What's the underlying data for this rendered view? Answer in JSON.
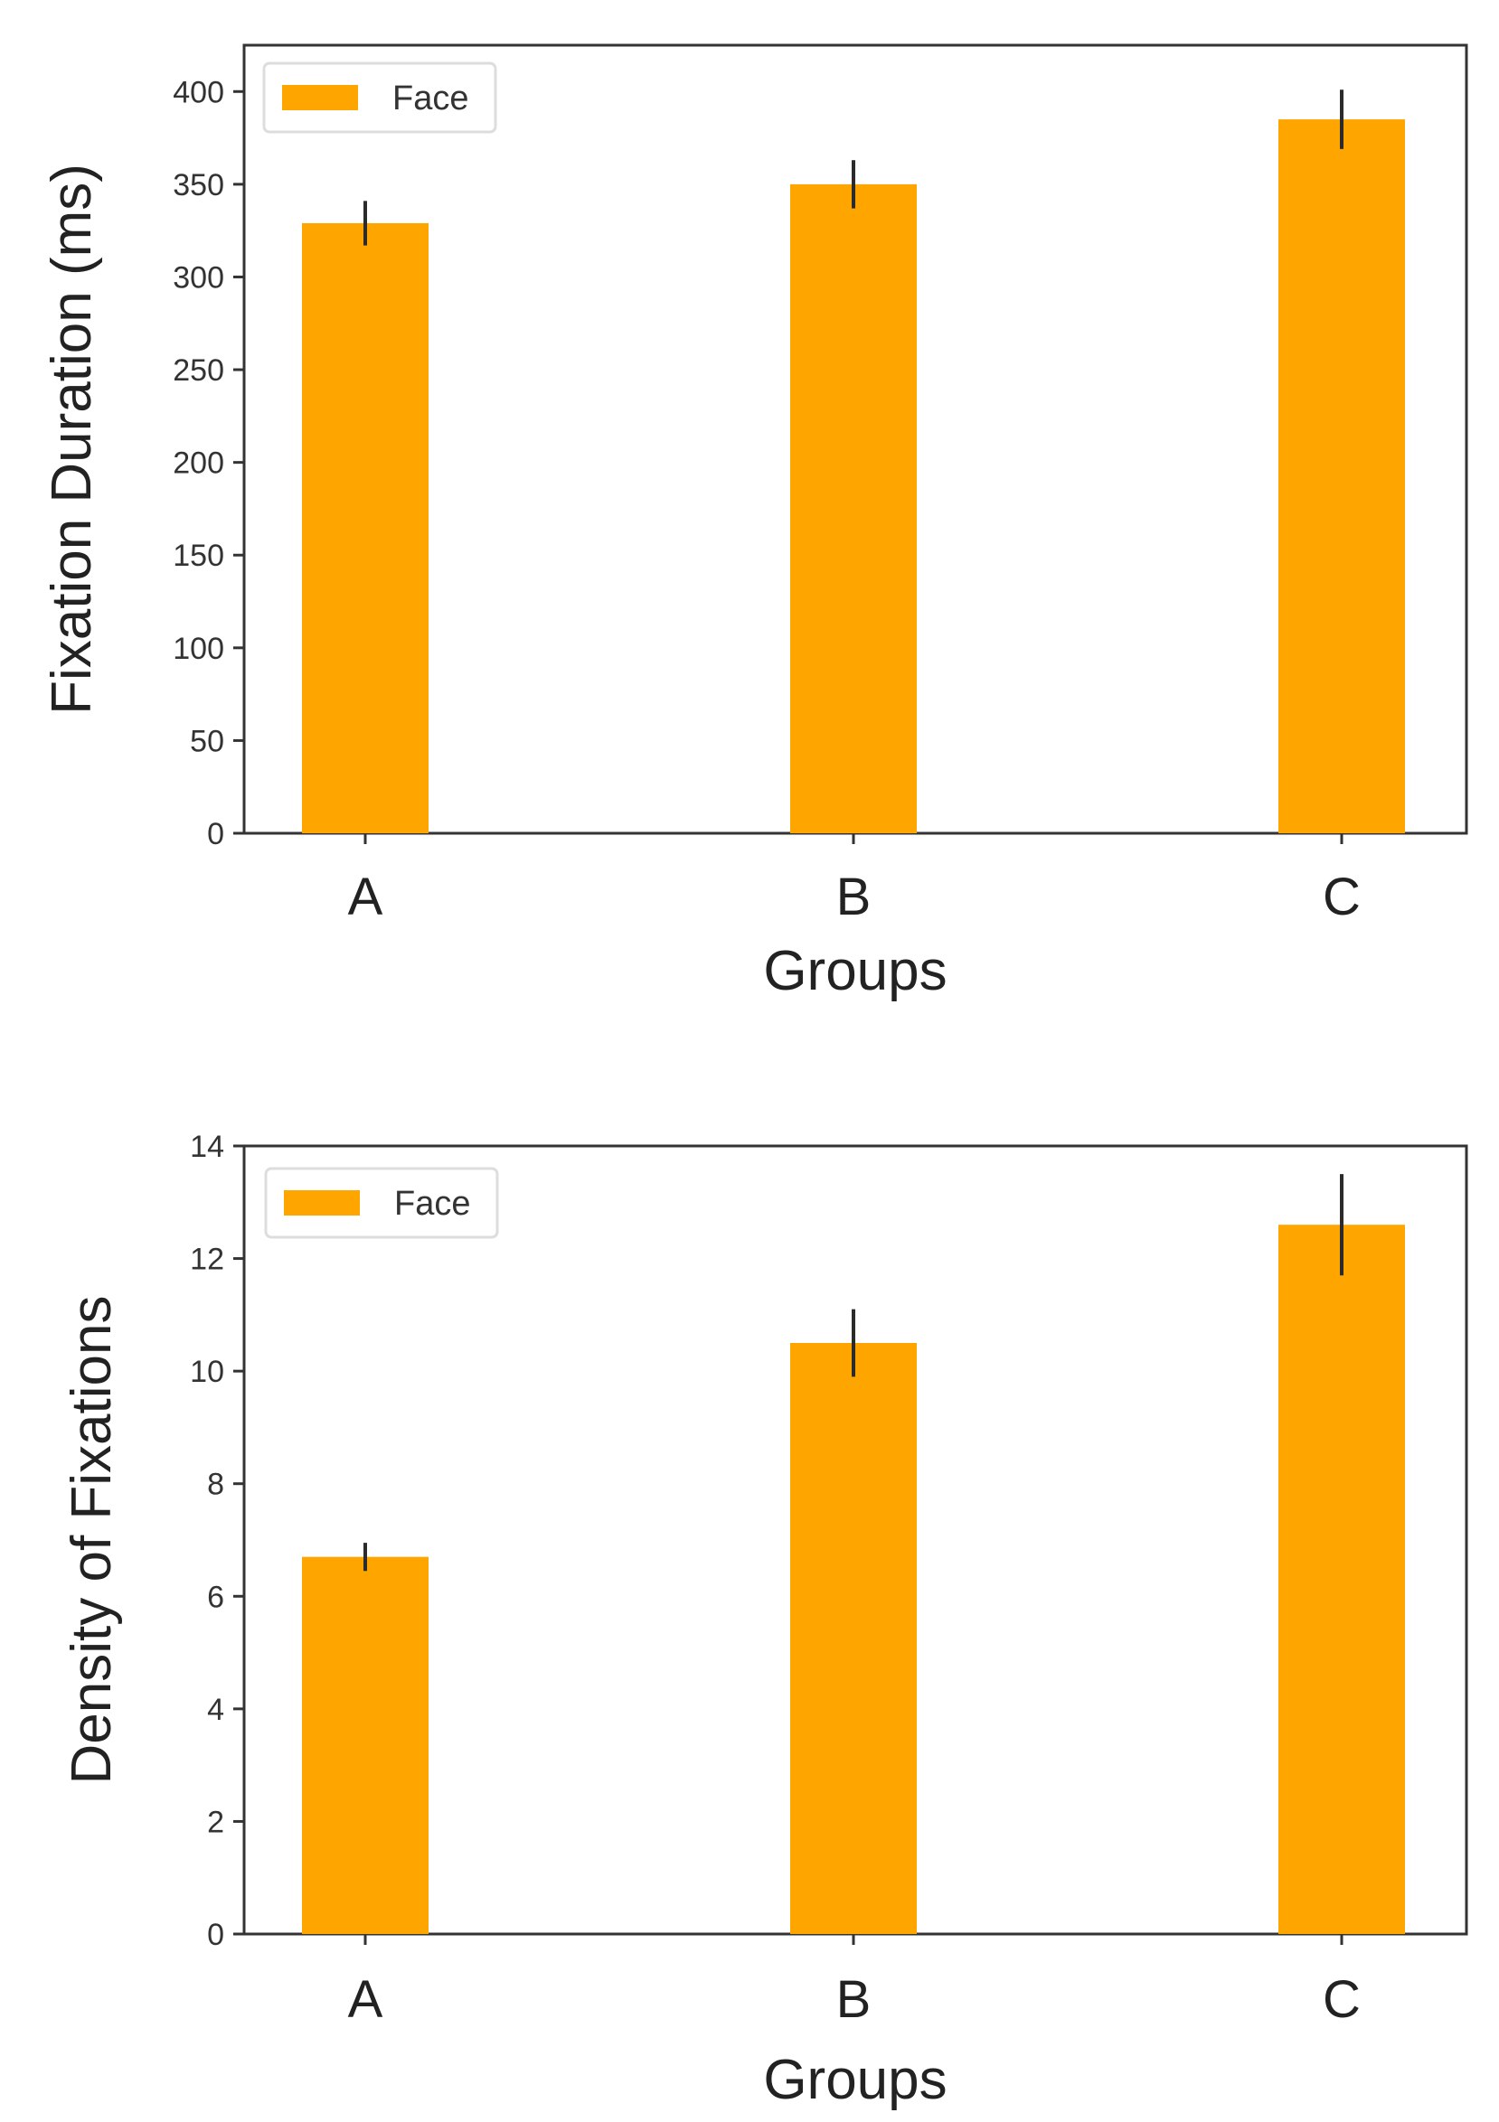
{
  "chart_data": [
    {
      "type": "bar",
      "title": "",
      "categories": [
        "A",
        "B",
        "C"
      ],
      "series": [
        {
          "name": "Face",
          "values": [
            329,
            350,
            385
          ],
          "errors": [
            12,
            13,
            16
          ]
        }
      ],
      "xlabel": "Groups",
      "ylabel": "Fixation Duration (ms)",
      "ylim": [
        0,
        425
      ],
      "yticks": [
        0,
        50,
        100,
        150,
        200,
        250,
        300,
        350,
        400
      ],
      "legend": "top-left",
      "grid": false,
      "color": "#FFA500"
    },
    {
      "type": "bar",
      "title": "",
      "categories": [
        "A",
        "B",
        "C"
      ],
      "series": [
        {
          "name": "Face",
          "values": [
            6.7,
            10.5,
            12.6
          ],
          "errors": [
            0.25,
            0.6,
            0.9
          ]
        }
      ],
      "xlabel": "Groups",
      "ylabel": "Density of Fixations",
      "ylim": [
        0,
        14
      ],
      "yticks": [
        0,
        2,
        4,
        6,
        8,
        10,
        12,
        14
      ],
      "legend": "top-left",
      "grid": false,
      "color": "#FFA500"
    }
  ]
}
